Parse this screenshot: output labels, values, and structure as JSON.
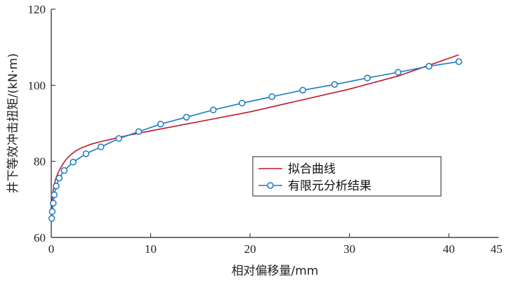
{
  "chart_data": {
    "type": "line",
    "xlabel": "相对偏移量/mm",
    "ylabel": "井下等效冲击扭矩/(kN·m)",
    "xlim": [
      0,
      45
    ],
    "ylim": [
      60,
      120
    ],
    "xticks": [
      0,
      10,
      20,
      30,
      40
    ],
    "yticks": [
      60,
      80,
      100,
      120
    ],
    "xtick_labels": [
      "0",
      "10",
      "20",
      "30",
      "40"
    ],
    "extra_xtick_labels": [
      {
        "value": 45,
        "label": "45"
      }
    ],
    "ytick_labels": [
      "60",
      "80",
      "100",
      "120"
    ],
    "grid": false,
    "legend_position": "center-right",
    "series": [
      {
        "name": "拟合曲线",
        "color": "#c0182a",
        "marker": "none",
        "x": [
          0.0,
          0.05,
          0.1,
          0.2,
          0.3,
          0.5,
          0.8,
          1.0,
          1.3,
          1.6,
          2.0,
          2.5,
          3.0,
          4.0,
          5.0,
          6.0,
          7.0,
          8.0,
          10.0,
          13.0,
          16.0,
          20.0,
          25.0,
          30.0,
          35.0,
          41.0
        ],
        "y": [
          65.0,
          68.0,
          70.0,
          72.5,
          74.0,
          75.8,
          77.6,
          78.6,
          79.8,
          80.8,
          81.8,
          82.8,
          83.5,
          84.5,
          85.2,
          85.8,
          86.4,
          87.0,
          88.0,
          89.5,
          91.0,
          93.0,
          96.0,
          99.0,
          102.5,
          108.0
        ]
      },
      {
        "name": "有限元分析结果",
        "color": "#1a7ac4",
        "marker": "circle",
        "x": [
          0.05,
          0.1,
          0.2,
          0.3,
          0.5,
          0.8,
          1.3,
          2.2,
          3.5,
          5.0,
          6.8,
          8.8,
          11.0,
          13.6,
          16.3,
          19.2,
          22.2,
          25.3,
          28.5,
          31.8,
          34.9,
          38.0,
          41.0
        ],
        "y": [
          65.0,
          66.8,
          69.0,
          71.2,
          73.5,
          75.6,
          77.6,
          79.8,
          82.0,
          83.8,
          86.0,
          87.8,
          89.8,
          91.6,
          93.5,
          95.3,
          97.0,
          98.7,
          100.2,
          101.9,
          103.4,
          105.0,
          106.2
        ]
      }
    ]
  }
}
